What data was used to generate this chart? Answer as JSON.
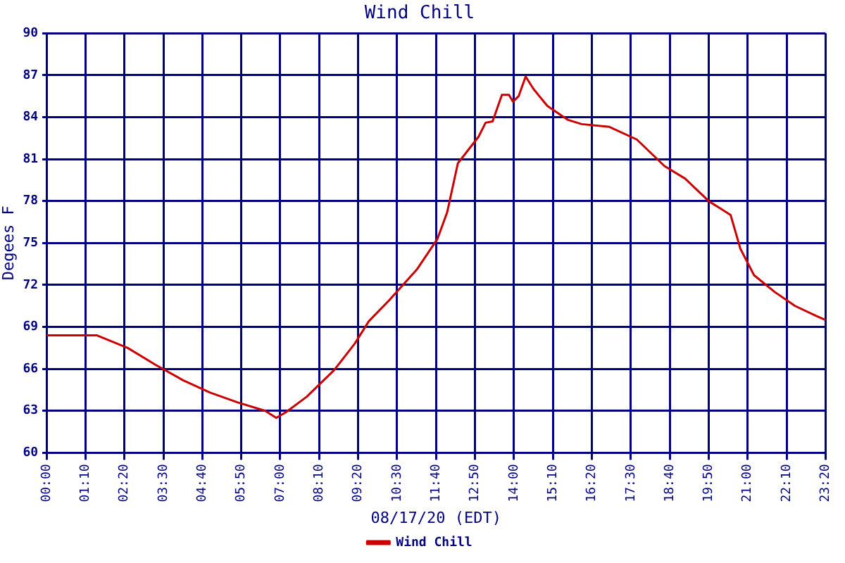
{
  "chart_data": {
    "type": "line",
    "title": "Wind Chill",
    "xlabel": "08/17/20 (EDT)",
    "ylabel": "Degees F",
    "xlim": [
      0,
      23.333
    ],
    "xticks": [
      {
        "value": 0,
        "label": "00:00"
      },
      {
        "value": 1.1667,
        "label": "01:10"
      },
      {
        "value": 2.3333,
        "label": "02:20"
      },
      {
        "value": 3.5,
        "label": "03:30"
      },
      {
        "value": 4.6667,
        "label": "04:40"
      },
      {
        "value": 5.8333,
        "label": "05:50"
      },
      {
        "value": 7,
        "label": "07:00"
      },
      {
        "value": 8.1667,
        "label": "08:10"
      },
      {
        "value": 9.3333,
        "label": "09:20"
      },
      {
        "value": 10.5,
        "label": "10:30"
      },
      {
        "value": 11.6667,
        "label": "11:40"
      },
      {
        "value": 12.8333,
        "label": "12:50"
      },
      {
        "value": 14,
        "label": "14:00"
      },
      {
        "value": 15.1667,
        "label": "15:10"
      },
      {
        "value": 16.3333,
        "label": "16:20"
      },
      {
        "value": 17.5,
        "label": "17:30"
      },
      {
        "value": 18.6667,
        "label": "18:40"
      },
      {
        "value": 19.8333,
        "label": "19:50"
      },
      {
        "value": 21,
        "label": "21:00"
      },
      {
        "value": 22.1667,
        "label": "22:10"
      },
      {
        "value": 23.333,
        "label": "23:20"
      }
    ],
    "ylim": [
      60,
      90
    ],
    "yticks": [
      60,
      63,
      66,
      69,
      72,
      75,
      78,
      81,
      84,
      87,
      90
    ],
    "grid": true,
    "legend": "bottom",
    "marker": "none",
    "line_style": "solid",
    "series": [
      {
        "name": "Wind Chill",
        "color": "#cc0000",
        "x": [
          0,
          1.5,
          2.43,
          3.26,
          4.08,
          4.9,
          5.73,
          6.55,
          6.88,
          7.17,
          7.79,
          8.61,
          9.23,
          9.65,
          10.26,
          11.09,
          11.71,
          12.0,
          12.32,
          12.94,
          13.15,
          13.36,
          13.64,
          13.85,
          13.97,
          14.14,
          14.35,
          14.59,
          15.0,
          15.62,
          16.03,
          16.86,
          17.68,
          18.51,
          19.13,
          19.83,
          20.49,
          20.78,
          21.19,
          21.81,
          22.42,
          23.04,
          23.33
        ],
        "values": [
          68.4,
          68.4,
          67.5,
          66.3,
          65.2,
          64.3,
          63.6,
          63.0,
          62.5,
          62.9,
          64.0,
          65.9,
          67.8,
          69.4,
          70.9,
          73.1,
          75.3,
          77.2,
          80.7,
          82.6,
          83.6,
          83.7,
          85.6,
          85.6,
          85.1,
          85.5,
          86.9,
          86.0,
          84.8,
          83.8,
          83.5,
          83.3,
          82.4,
          80.5,
          79.6,
          78.0,
          77.0,
          74.6,
          72.7,
          71.5,
          70.5,
          69.8,
          69.5
        ]
      }
    ]
  }
}
